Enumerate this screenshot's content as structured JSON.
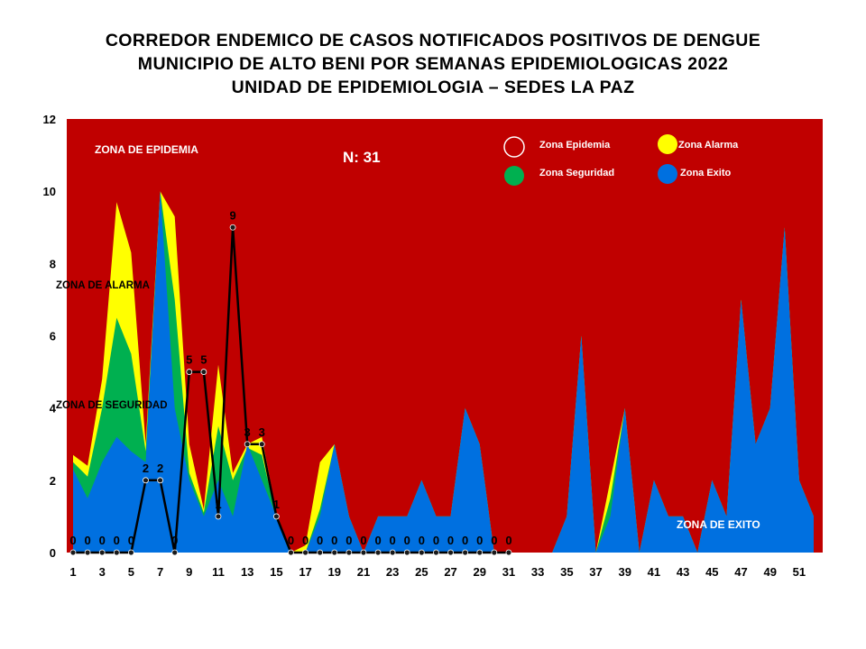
{
  "titles": {
    "line1": "CORREDOR ENDEMICO DE CASOS NOTIFICADOS POSITIVOS DE DENGUE",
    "line2": "MUNICIPIO DE ALTO BENI POR SEMANAS EPIDEMIOLOGICAS 2022",
    "line3": "UNIDAD DE EPIDEMIOLOGIA – SEDES LA PAZ"
  },
  "colors": {
    "epidemia": "#C00000",
    "alarma": "#FFFF00",
    "seguridad": "#00B050",
    "exito": "#0070E0",
    "cases_line": "#000000"
  },
  "chart_data": {
    "type": "area",
    "x": [
      1,
      2,
      3,
      4,
      5,
      6,
      7,
      8,
      9,
      10,
      11,
      12,
      13,
      14,
      15,
      16,
      17,
      18,
      19,
      20,
      21,
      22,
      23,
      24,
      25,
      26,
      27,
      28,
      29,
      30,
      31,
      32,
      33,
      34,
      35,
      36,
      37,
      38,
      39,
      40,
      41,
      42,
      43,
      44,
      45,
      46,
      47,
      48,
      49,
      50,
      51,
      52
    ],
    "x_tick_labels": [
      "1",
      "3",
      "5",
      "7",
      "9",
      "11",
      "13",
      "15",
      "17",
      "19",
      "21",
      "23",
      "25",
      "27",
      "29",
      "31",
      "33",
      "35",
      "37",
      "39",
      "41",
      "43",
      "45",
      "47",
      "49",
      "51"
    ],
    "y_tick_labels": [
      "0",
      "2",
      "4",
      "6",
      "8",
      "10",
      "12"
    ],
    "ylim": [
      0,
      12
    ],
    "xlim": [
      1,
      52
    ],
    "series": [
      {
        "name": "Zona Epidemia",
        "values": [
          12,
          12,
          12,
          12,
          12,
          12,
          12,
          12,
          12,
          12,
          12,
          12,
          12,
          12,
          12,
          12,
          12,
          12,
          12,
          12,
          12,
          12,
          12,
          12,
          12,
          12,
          12,
          12,
          12,
          12,
          12,
          12,
          12,
          12,
          12,
          12,
          12,
          12,
          12,
          12,
          12,
          12,
          12,
          12,
          12,
          12,
          12,
          12,
          12,
          12,
          12,
          12
        ]
      },
      {
        "name": "Zona Alarma",
        "values": [
          2.7,
          2.4,
          4.8,
          9.7,
          8.3,
          3.0,
          10.0,
          9.3,
          3.0,
          1.2,
          5.2,
          2.2,
          3.0,
          3.2,
          1.1,
          0,
          0.2,
          2.5,
          3.0,
          1.0,
          0,
          1.0,
          1.0,
          1.0,
          2.0,
          1.0,
          1.0,
          4.0,
          3.0,
          0,
          0,
          0,
          0,
          0,
          1.0,
          6.0,
          0,
          2.0,
          4.0,
          0,
          2.0,
          1.0,
          1.0,
          0,
          2.0,
          1.0,
          7.0,
          3.0,
          4.0,
          9.0,
          2.0,
          1.0
        ]
      },
      {
        "name": "Zona Seguridad",
        "values": [
          2.5,
          2.1,
          4.0,
          6.5,
          5.5,
          2.8,
          10.0,
          7.0,
          2.2,
          1.1,
          3.5,
          2.0,
          2.9,
          2.7,
          1.0,
          0,
          0,
          1.2,
          3.0,
          1.0,
          0,
          1.0,
          1.0,
          1.0,
          2.0,
          1.0,
          1.0,
          4.0,
          3.0,
          0,
          0,
          0,
          0,
          0,
          1.0,
          6.0,
          0,
          1.5,
          4.0,
          0,
          2.0,
          1.0,
          1.0,
          0,
          2.0,
          1.0,
          7.0,
          3.0,
          4.0,
          9.0,
          2.0,
          1.0
        ]
      },
      {
        "name": "Zona Exito",
        "values": [
          2.3,
          1.5,
          2.5,
          3.2,
          2.8,
          2.5,
          10.0,
          4.0,
          2.0,
          1.0,
          2.0,
          1.0,
          3.0,
          2.0,
          1.0,
          0,
          0,
          1.0,
          3.0,
          1.0,
          0,
          1.0,
          1.0,
          1.0,
          2.0,
          1.0,
          1.0,
          4.0,
          3.0,
          0,
          0,
          0,
          0,
          0,
          1.0,
          6.0,
          0,
          1.0,
          4.0,
          0,
          2.0,
          1.0,
          1.0,
          0,
          2.0,
          1.0,
          7.0,
          3.0,
          4.0,
          9.0,
          2.0,
          1.0
        ]
      }
    ],
    "cases": {
      "weeks": [
        1,
        2,
        3,
        4,
        5,
        6,
        7,
        8,
        9,
        10,
        11,
        12,
        13,
        14,
        15,
        16,
        17,
        18,
        19,
        20,
        21,
        22,
        23,
        24,
        25,
        26,
        27,
        28,
        29,
        30,
        31
      ],
      "values": [
        0,
        0,
        0,
        0,
        0,
        2,
        2,
        0,
        5,
        5,
        1,
        9,
        3,
        3,
        1,
        0,
        0,
        0,
        0,
        0,
        0,
        0,
        0,
        0,
        0,
        0,
        0,
        0,
        0,
        0,
        0
      ],
      "labels": [
        "0",
        "0",
        "0",
        "0",
        "0",
        "2",
        "2",
        "0",
        "5",
        "5",
        "1",
        "9",
        "3",
        "3",
        "1",
        "0",
        "0",
        "0",
        "0",
        "0",
        "0",
        "0",
        "0",
        "0",
        "0",
        "0",
        "0",
        "0",
        "0",
        "0",
        "0"
      ]
    },
    "annotations": {
      "n_total": "N: 31",
      "zona_epidemia": "ZONA DE EPIDEMIA",
      "zona_alarma": "ZONA DE ALARMA",
      "zona_seguridad": "ZONA DE  SEGURIDAD",
      "zona_exito": "ZONA DE  EXITO"
    },
    "legend": {
      "placement": "top-right",
      "items": [
        "Zona Epidemia",
        "Zona Alarma",
        "Zona Seguridad",
        "Zona Exito"
      ]
    }
  }
}
